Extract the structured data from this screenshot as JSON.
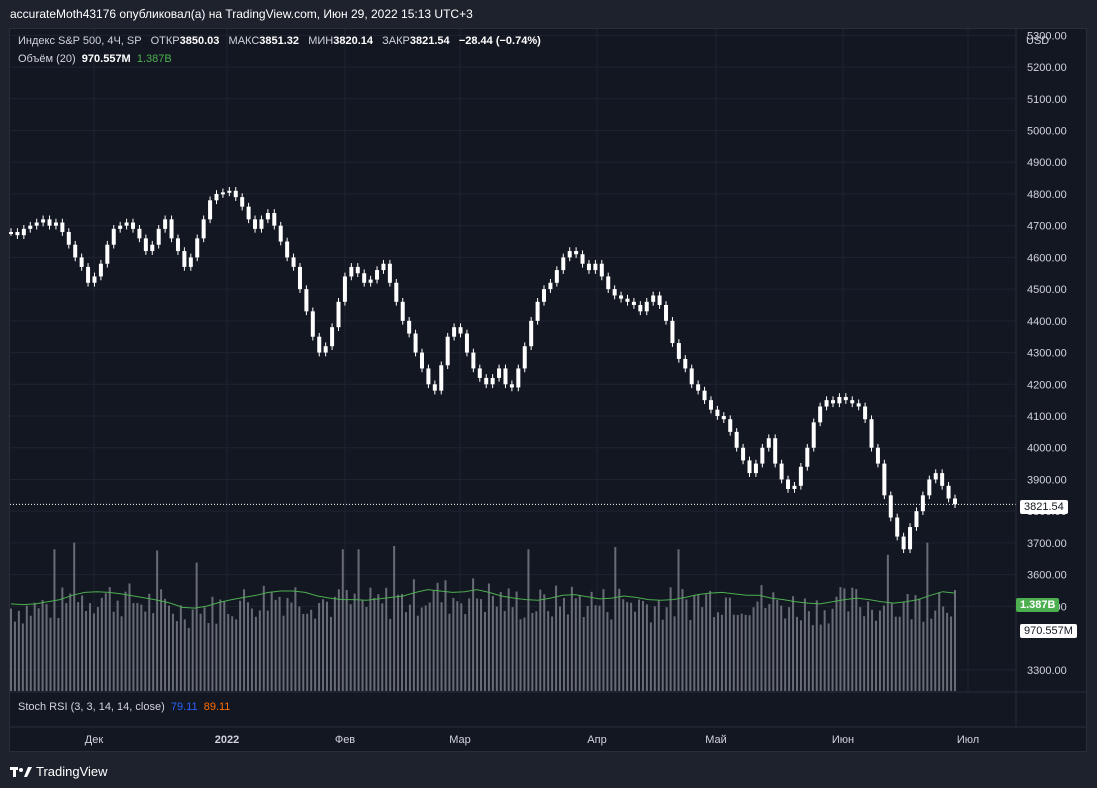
{
  "header": {
    "publisher": "accurateMoth43176 опубликовал(а) на TradingView.com, Июн 29, 2022 15:13 UTC+3"
  },
  "legend": {
    "symbol": "Индекс S&P 500, 4Ч, SP",
    "open_label": "ОТКР",
    "open": "3850.03",
    "high_label": "МАКС",
    "high": "3851.32",
    "low_label": "МИН",
    "low": "3820.14",
    "close_label": "ЗАКР",
    "close": "3821.54",
    "change": "−28.44 (−0.74%)",
    "volume_label": "Объём (20)",
    "volume": "970.557M",
    "volume_ma": "1.387B"
  },
  "stoch_rsi": {
    "label": "Stoch RSI (3, 3, 14, 14, close)",
    "k": "79.11",
    "d": "89.11"
  },
  "tags": {
    "last_price": "3821.54",
    "volume_ma": "1.387B",
    "volume": "970.557M"
  },
  "footer": {
    "brand": "TradingView"
  },
  "colors": {
    "background": "#131722",
    "candle": "#ffffff",
    "volume": "#787b86",
    "volume_ma": "#4caf50",
    "rsi_k": "#2962ff",
    "rsi_d": "#ff6d00",
    "tag_green": "#4caf50"
  },
  "chart_data": {
    "type": "line",
    "currency": "USD",
    "x_ticks": [
      "Дек",
      "2022",
      "Фев",
      "Мар",
      "Апр",
      "Май",
      "Июн",
      "Июл"
    ],
    "y_ticks": [
      "5300.00",
      "5200.00",
      "5100.00",
      "5000.00",
      "4900.00",
      "4800.00",
      "4700.00",
      "4600.00",
      "4500.00",
      "4400.00",
      "4300.00",
      "4200.00",
      "4100.00",
      "4000.00",
      "3900.00",
      "3800.00",
      "3700.00",
      "3600.00",
      "3500.00",
      "3300.00"
    ],
    "ylim": [
      3230,
      5320
    ],
    "last_price": 3821.54,
    "price_path": [
      4680,
      4670,
      4690,
      4700,
      4710,
      4720,
      4700,
      4710,
      4680,
      4640,
      4600,
      4570,
      4520,
      4540,
      4580,
      4640,
      4690,
      4700,
      4710,
      4690,
      4660,
      4620,
      4640,
      4690,
      4720,
      4660,
      4620,
      4570,
      4600,
      4660,
      4720,
      4780,
      4800,
      4805,
      4810,
      4790,
      4760,
      4720,
      4690,
      4720,
      4740,
      4700,
      4650,
      4600,
      4570,
      4500,
      4430,
      4350,
      4300,
      4320,
      4380,
      4460,
      4540,
      4570,
      4550,
      4520,
      4530,
      4560,
      4580,
      4520,
      4460,
      4400,
      4360,
      4300,
      4250,
      4200,
      4180,
      4260,
      4350,
      4380,
      4360,
      4300,
      4250,
      4220,
      4200,
      4220,
      4250,
      4200,
      4190,
      4250,
      4320,
      4400,
      4460,
      4500,
      4520,
      4560,
      4600,
      4620,
      4610,
      4580,
      4560,
      4580,
      4540,
      4500,
      4480,
      4470,
      4460,
      4450,
      4430,
      4460,
      4480,
      4450,
      4400,
      4330,
      4280,
      4250,
      4200,
      4180,
      4150,
      4120,
      4100,
      4090,
      4050,
      4000,
      3960,
      3920,
      3950,
      4000,
      4030,
      3950,
      3900,
      3870,
      3880,
      3940,
      4000,
      4080,
      4130,
      4150,
      4140,
      4160,
      4150,
      4140,
      4130,
      4090,
      4000,
      3950,
      3850,
      3780,
      3720,
      3680,
      3750,
      3800,
      3850,
      3900,
      3920,
      3880,
      3840,
      3822
    ],
    "volume_ma_path": [
      1.22,
      1.21,
      1.22,
      1.25,
      1.28,
      1.34,
      1.38,
      1.39,
      1.38,
      1.36,
      1.33,
      1.3,
      1.27,
      1.23,
      1.17,
      1.16,
      1.19,
      1.24,
      1.28,
      1.31,
      1.34,
      1.38,
      1.4,
      1.4,
      1.38,
      1.33,
      1.3,
      1.28,
      1.28,
      1.27,
      1.29,
      1.31,
      1.33,
      1.38,
      1.42,
      1.4,
      1.38,
      1.39,
      1.42,
      1.38,
      1.33,
      1.3,
      1.28,
      1.27,
      1.3,
      1.34,
      1.35,
      1.32,
      1.29,
      1.3,
      1.33,
      1.31,
      1.28,
      1.27,
      1.28,
      1.31,
      1.35,
      1.37,
      1.38,
      1.36,
      1.34,
      1.34,
      1.3,
      1.28,
      1.25,
      1.23,
      1.22,
      1.25,
      1.28,
      1.3,
      1.28,
      1.25,
      1.23,
      1.25,
      1.28,
      1.34,
      1.39,
      1.37
    ],
    "volume_max": 2.1,
    "stoch_rsi_k": 79.11,
    "stoch_rsi_d": 89.11
  }
}
